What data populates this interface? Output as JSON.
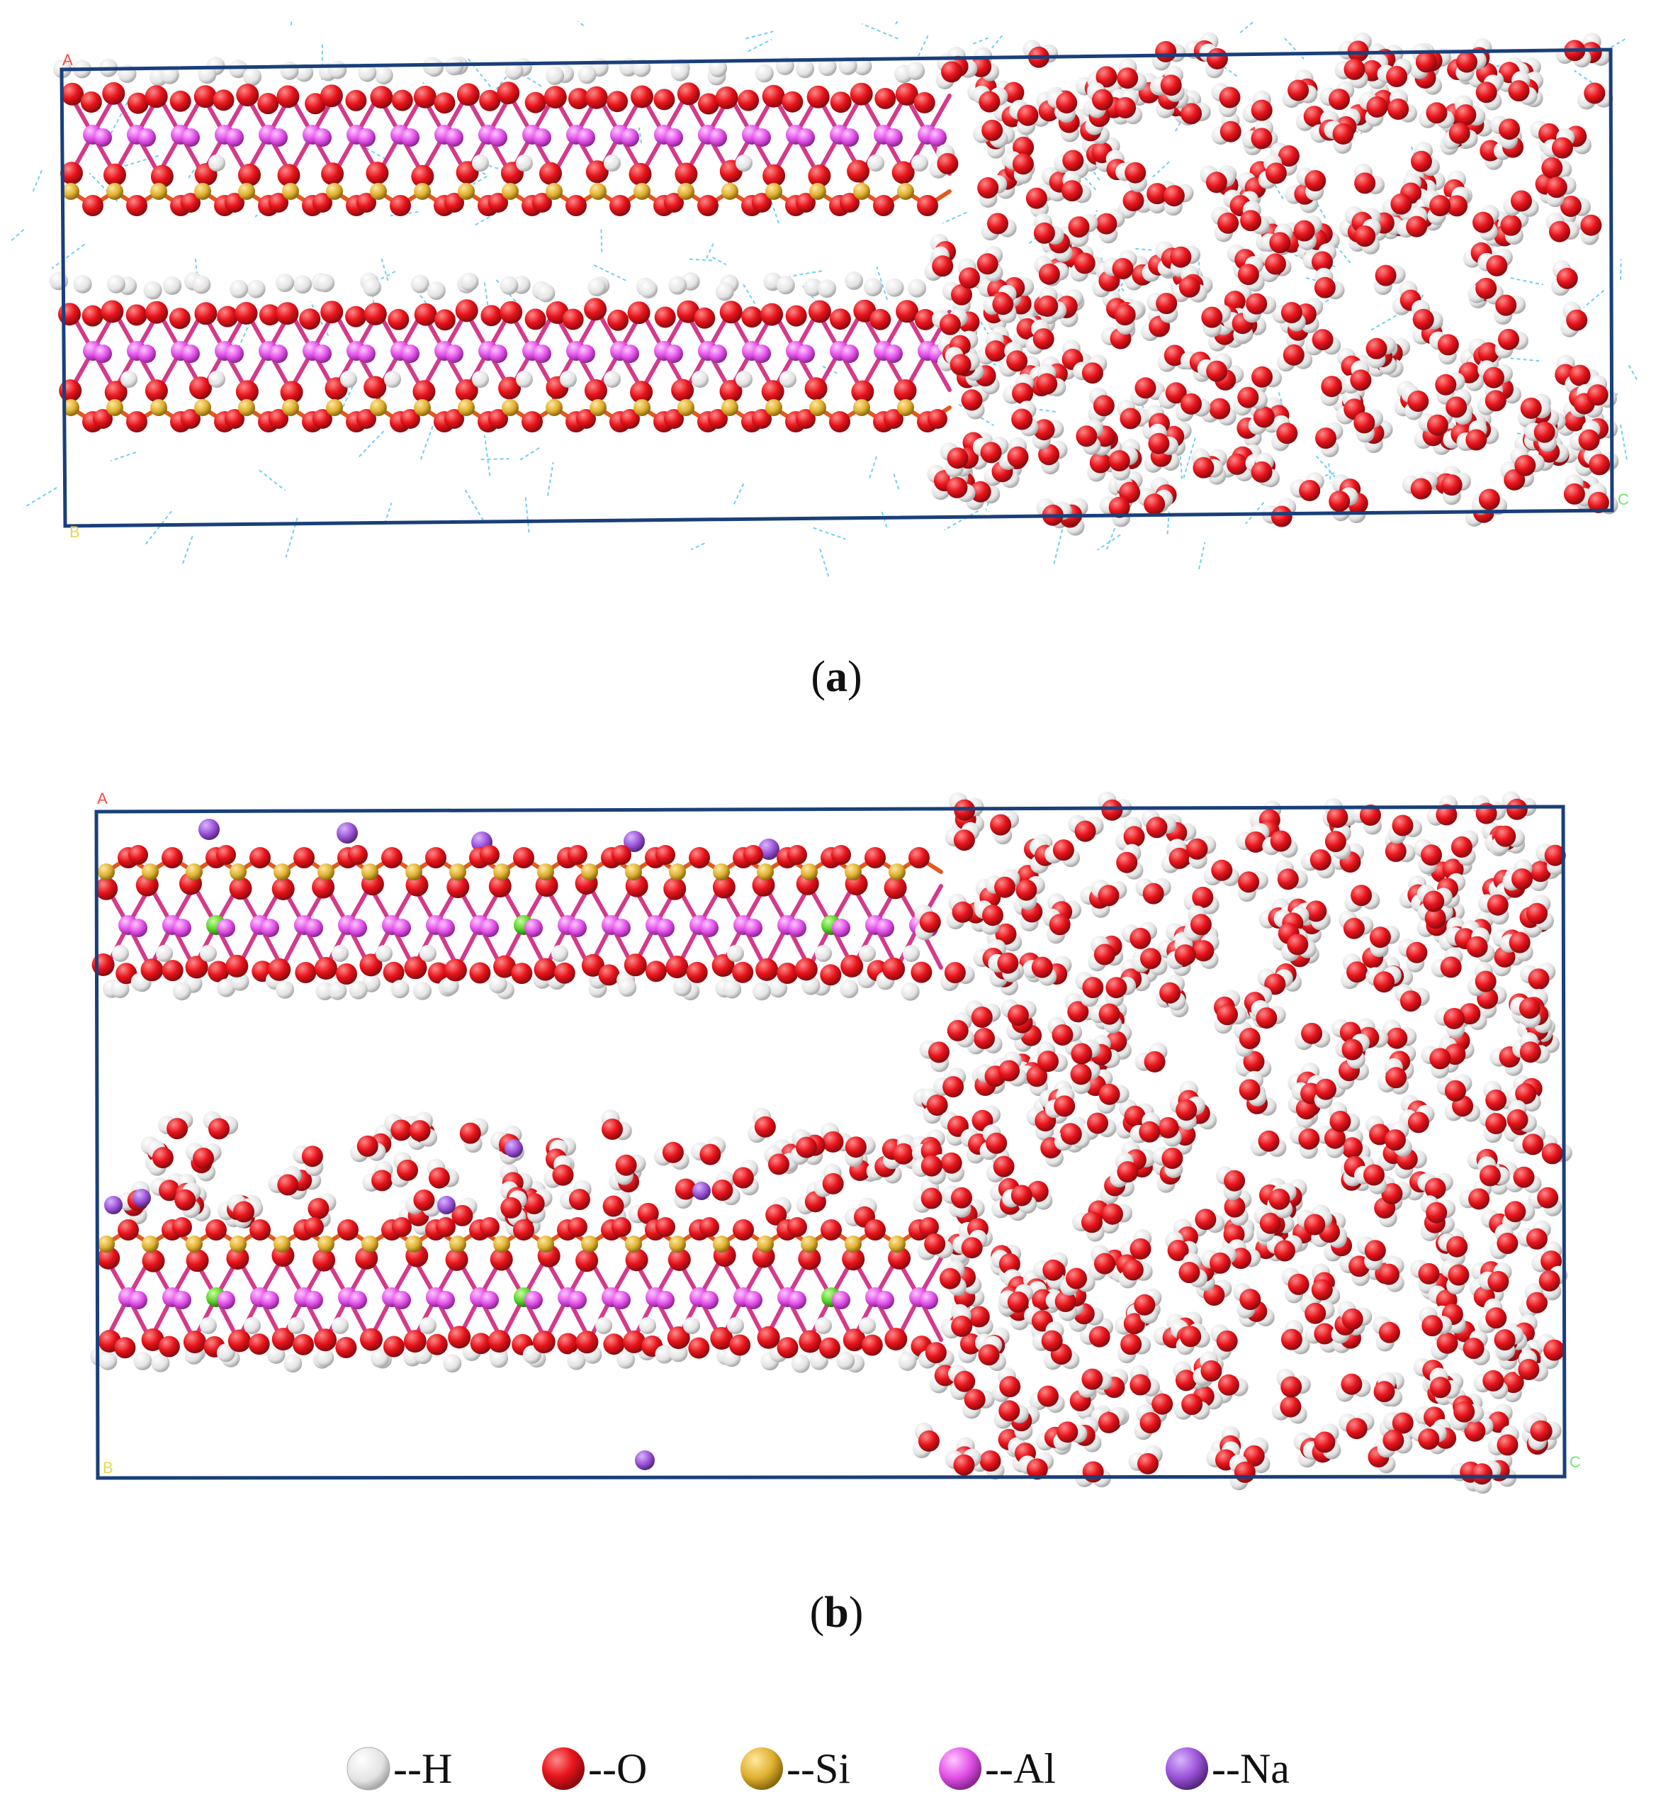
{
  "panels": [
    {
      "id": "a",
      "caption_letter": "a",
      "corner_labels": [
        "A",
        "B",
        "C"
      ]
    },
    {
      "id": "b",
      "caption_letter": "b",
      "corner_labels": [
        "A",
        "B",
        "C"
      ]
    }
  ],
  "legend": [
    {
      "label": "--H",
      "color": "#e6e6e6"
    },
    {
      "label": "--O",
      "color": "#e8141b"
    },
    {
      "label": "--Si",
      "color": "#e0b030"
    },
    {
      "label": "--Al",
      "color": "#e24fe8"
    },
    {
      "label": "--Na",
      "color": "#9b52d6"
    }
  ],
  "colors": {
    "cell_border": "#1a3f7a",
    "hydrogen": "#e6e6e6",
    "oxygen": "#e8141b",
    "silicon": "#e0b030",
    "aluminum": "#e24fe8",
    "sodium": "#9b52d6",
    "magnesium": "#58d22a",
    "hbond": "#6fd0f0",
    "label_A": "#ff4444",
    "label_B": "#e6d84a",
    "label_C": "#6ee86e"
  }
}
